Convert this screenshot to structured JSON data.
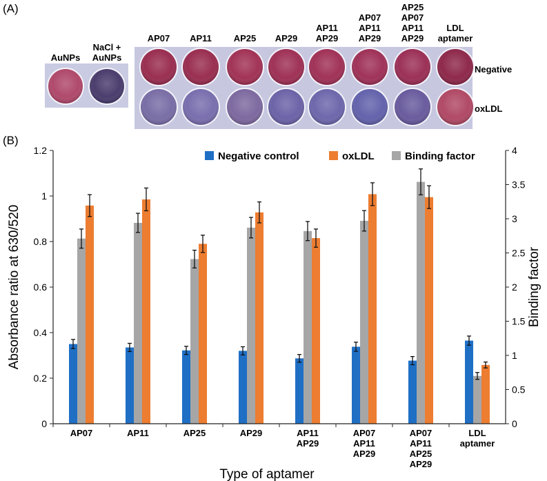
{
  "panel_a": {
    "label": "(A)",
    "single_columns": [
      {
        "lines": [
          "AuNPs"
        ],
        "color": "#b04a6c"
      },
      {
        "lines": [
          "NaCl +",
          "AuNPs"
        ],
        "color": "#4b3e6e"
      }
    ],
    "plate_columns": [
      {
        "lines": [
          "AP07"
        ],
        "negative_color": "#9a2f52",
        "oxldl_color": "#7a6ea6"
      },
      {
        "lines": [
          "AP11"
        ],
        "negative_color": "#9a2f52",
        "oxldl_color": "#7a6fae"
      },
      {
        "lines": [
          "AP25"
        ],
        "negative_color": "#a23457",
        "oxldl_color": "#7e6aa0"
      },
      {
        "lines": [
          "AP29"
        ],
        "negative_color": "#9f3257",
        "oxldl_color": "#6c64a8"
      },
      {
        "lines": [
          "AP11",
          "AP29"
        ],
        "negative_color": "#a13358",
        "oxldl_color": "#6e68ac"
      },
      {
        "lines": [
          "AP07",
          "AP11",
          "AP29"
        ],
        "negative_color": "#a03359",
        "oxldl_color": "#6463ac"
      },
      {
        "lines": [
          "AP25",
          "AP07",
          "AP11",
          "AP29"
        ],
        "negative_color": "#9c3158",
        "oxldl_color": "#6a5c9e"
      },
      {
        "lines": [
          "LDL",
          "aptamer"
        ],
        "negative_color": "#8f2a4c",
        "oxldl_color": "#b14a66"
      }
    ],
    "row_labels": [
      "Negative",
      "oxLDL"
    ]
  },
  "panel_b": {
    "label": "(B)"
  },
  "chart_data": {
    "type": "bar",
    "categories": [
      [
        "AP07"
      ],
      [
        "AP11"
      ],
      [
        "AP25"
      ],
      [
        "AP29"
      ],
      [
        "AP11",
        "AP29"
      ],
      [
        "AP07",
        "AP11",
        "AP29"
      ],
      [
        "AP07",
        "AP11",
        "AP25",
        "AP29"
      ],
      [
        "LDL",
        "aptamer"
      ]
    ],
    "xlabel": "Type of aptamer",
    "ylabel": "Absorbance ratio at 630/520",
    "y2label": "Binding factor",
    "ylim": [
      0,
      1.2
    ],
    "yticks": [
      0,
      0.2,
      0.4,
      0.6,
      0.8,
      1,
      1.2
    ],
    "y2lim": [
      0,
      4
    ],
    "y2ticks": [
      0,
      0.5,
      1,
      1.5,
      2,
      2.5,
      3,
      3.5,
      4
    ],
    "legend_position": "top-right",
    "series": [
      {
        "name": "Negative control",
        "axis": "left",
        "color": "#1f6fc5",
        "values": [
          0.35,
          0.335,
          0.322,
          0.32,
          0.287,
          0.338,
          0.277,
          0.365
        ],
        "errors": [
          0.02,
          0.018,
          0.018,
          0.018,
          0.017,
          0.02,
          0.018,
          0.02
        ]
      },
      {
        "name": "Binding factor",
        "axis": "right",
        "color": "#a6a6a6",
        "values": [
          2.71,
          2.94,
          2.41,
          2.87,
          2.82,
          2.97,
          3.54,
          0.7
        ],
        "errors": [
          0.14,
          0.14,
          0.13,
          0.15,
          0.14,
          0.15,
          0.19,
          0.05
        ]
      },
      {
        "name": "oxLDL",
        "axis": "left",
        "color": "#ed7d31",
        "values": [
          0.958,
          0.985,
          0.79,
          0.928,
          0.815,
          1.008,
          0.995,
          0.258
        ],
        "errors": [
          0.048,
          0.05,
          0.038,
          0.046,
          0.04,
          0.05,
          0.05,
          0.013
        ]
      }
    ]
  }
}
